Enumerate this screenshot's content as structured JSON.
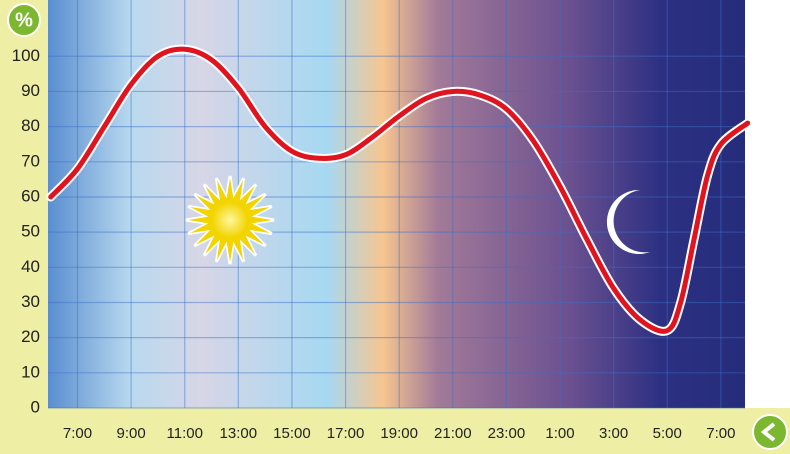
{
  "chart_data": {
    "type": "line",
    "ylabel": "%",
    "x": [
      6,
      7,
      8,
      9,
      10,
      11,
      12,
      13,
      14,
      15,
      16,
      17,
      18,
      19,
      20,
      21,
      22,
      23,
      24,
      25,
      26,
      27,
      28,
      29,
      29.5,
      30,
      30.5,
      31,
      32
    ],
    "series": [
      {
        "color": "#e0141e",
        "values": [
          60,
          68,
          80,
          92,
          100,
          102,
          99,
          91,
          80,
          73,
          71,
          72,
          77,
          83,
          88,
          90,
          89,
          85,
          76,
          63,
          48,
          34,
          25,
          22,
          30,
          48,
          66,
          75,
          81
        ]
      }
    ],
    "xlim": [
      5.9,
      31.9
    ],
    "xticks": [
      {
        "value": 7,
        "label": "7:00"
      },
      {
        "value": 9,
        "label": "9:00"
      },
      {
        "value": 11,
        "label": "11:00"
      },
      {
        "value": 13,
        "label": "13:00"
      },
      {
        "value": 15,
        "label": "15:00"
      },
      {
        "value": 17,
        "label": "17:00"
      },
      {
        "value": 19,
        "label": "19:00"
      },
      {
        "value": 21,
        "label": "21:00"
      },
      {
        "value": 23,
        "label": "23:00"
      },
      {
        "value": 25,
        "label": "1:00"
      },
      {
        "value": 27,
        "label": "3:00"
      },
      {
        "value": 29,
        "label": "5:00"
      },
      {
        "value": 31,
        "label": "7:00"
      }
    ],
    "ylim": [
      0,
      116
    ],
    "yticks": [
      0,
      10,
      20,
      30,
      40,
      50,
      60,
      70,
      80,
      90,
      100
    ],
    "grid": true
  }
}
